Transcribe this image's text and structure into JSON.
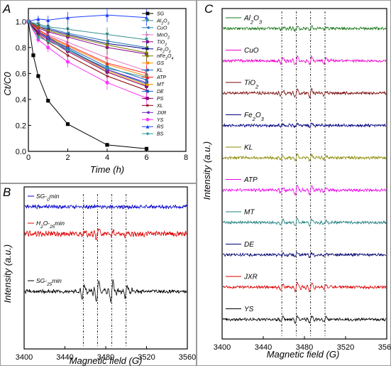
{
  "panels": {
    "a": "A",
    "b": "B",
    "c": "C"
  },
  "chart_data": [
    {
      "type": "line",
      "panel": "A",
      "xlabel": "Time (h)",
      "ylabel": "Ct/C0",
      "xlim": [
        0,
        8
      ],
      "ylim": [
        0,
        1.1
      ],
      "xticks": [
        0,
        2,
        4,
        6,
        8
      ],
      "yticks": [
        0.0,
        0.2,
        0.4,
        0.6,
        0.8,
        1.0
      ],
      "x": [
        0,
        0.5,
        1,
        2,
        4,
        6
      ],
      "series": [
        {
          "name": "SG",
          "color": "#000000",
          "marker": "square",
          "values": [
            1.0,
            0.74,
            0.58,
            0.39,
            0.21,
            0.05,
            0.02
          ],
          "x": [
            0,
            0.25,
            0.5,
            1,
            2,
            4,
            6
          ]
        },
        {
          "name": "Al2O3",
          "color": "#3a8f8f",
          "marker": "tri-down",
          "values": [
            1.0,
            0.98,
            0.96,
            0.94,
            0.9,
            0.86
          ]
        },
        {
          "name": "CuO",
          "color": "#1f77b4",
          "marker": "tri-left",
          "values": [
            1.0,
            0.97,
            0.95,
            0.91,
            0.85,
            0.8
          ]
        },
        {
          "name": "MnO2",
          "color": "#e377c2",
          "marker": "tri-right",
          "values": [
            1.0,
            0.93,
            0.9,
            0.84,
            0.72,
            0.62
          ]
        },
        {
          "name": "TiO2",
          "color": "#8b008b",
          "marker": "hexagon",
          "values": [
            1.0,
            0.95,
            0.92,
            0.88,
            0.8,
            0.75
          ]
        },
        {
          "name": "Fe2O3",
          "color": "#00008b",
          "marker": "star",
          "values": [
            1.0,
            0.96,
            0.94,
            0.9,
            0.83,
            0.79
          ]
        },
        {
          "name": "nFe2O4",
          "color": "#7a7a00",
          "marker": "diamond-small",
          "values": [
            1.0,
            0.96,
            0.93,
            0.89,
            0.82,
            0.76
          ]
        },
        {
          "name": "GS",
          "color": "#ff8c00",
          "marker": "hexagon",
          "values": [
            1.0,
            0.93,
            0.88,
            0.81,
            0.67,
            0.58
          ]
        },
        {
          "name": "KL",
          "color": "#1f5fbf",
          "marker": "pentagon",
          "values": [
            1.0,
            0.92,
            0.87,
            0.8,
            0.65,
            0.55
          ]
        },
        {
          "name": "ATP",
          "color": "#ff2020",
          "marker": "tri-up",
          "values": [
            1.0,
            0.94,
            0.89,
            0.82,
            0.68,
            0.6
          ]
        },
        {
          "name": "MT",
          "color": "#e69f00",
          "marker": "tri-up",
          "values": [
            1.0,
            0.93,
            0.88,
            0.78,
            0.62,
            0.51
          ]
        },
        {
          "name": "DE",
          "color": "#2060c0",
          "marker": "circle",
          "values": [
            1.0,
            0.92,
            0.88,
            0.79,
            0.63,
            0.52
          ]
        },
        {
          "name": "PS",
          "color": "#8b0060",
          "marker": "circle",
          "values": [
            1.0,
            0.91,
            0.86,
            0.77,
            0.61,
            0.5
          ]
        },
        {
          "name": "XL",
          "color": "#8b0000",
          "marker": "star",
          "values": [
            1.0,
            0.9,
            0.84,
            0.74,
            0.58,
            0.47
          ]
        },
        {
          "name": "JXR",
          "color": "#6a1fbf",
          "marker": "tri-left",
          "values": [
            1.0,
            0.92,
            0.87,
            0.78,
            0.63,
            0.53
          ]
        },
        {
          "name": "YS",
          "color": "#ff33ff",
          "marker": "circle",
          "values": [
            1.0,
            0.86,
            0.8,
            0.69,
            0.53,
            0.41
          ]
        },
        {
          "name": "RS",
          "color": "#2040ff",
          "marker": "tri-up",
          "values": [
            1.0,
            1.02,
            1.01,
            1.03,
            1.05,
            1.03
          ]
        },
        {
          "name": "BS",
          "color": "#2a9d9d",
          "marker": "diamond",
          "values": [
            1.0,
            0.88,
            0.85,
            0.78,
            0.64,
            0.57
          ]
        }
      ]
    },
    {
      "type": "line",
      "panel": "B",
      "xlabel": "Magnetic field (G)",
      "ylabel": "Intensity (a.u.)",
      "xlim": [
        3400,
        3560
      ],
      "xticks": [
        3400,
        3440,
        3480,
        3520,
        3560
      ],
      "marked_fields": [
        3458,
        3472,
        3486,
        3500
      ],
      "series": [
        {
          "name": "SG-0min",
          "color": "#0000cc"
        },
        {
          "name": "H2O-25min",
          "color": "#dd0000"
        },
        {
          "name": "SG-25min",
          "color": "#000000"
        }
      ]
    },
    {
      "type": "line",
      "panel": "C",
      "xlabel": "Magnetic field (G)",
      "ylabel": "Intensity (a.u.)",
      "xlim": [
        3400,
        3560
      ],
      "xticks": [
        3400,
        3440,
        3480,
        3520,
        3560
      ],
      "marked_fields": [
        3458,
        3472,
        3486,
        3500
      ],
      "series": [
        {
          "name": "Al2O3",
          "color": "#1a7a1a"
        },
        {
          "name": "CuO",
          "color": "#ee00cc"
        },
        {
          "name": "TiO2",
          "color": "#7a0a0a"
        },
        {
          "name": "Fe2O3",
          "color": "#000080"
        },
        {
          "name": "KL",
          "color": "#8a8a00"
        },
        {
          "name": "ATP",
          "color": "#ee00ee"
        },
        {
          "name": "MT",
          "color": "#208080"
        },
        {
          "name": "DE",
          "color": "#000070"
        },
        {
          "name": "JXR",
          "color": "#dd0000"
        },
        {
          "name": "YS",
          "color": "#000000"
        }
      ]
    }
  ]
}
